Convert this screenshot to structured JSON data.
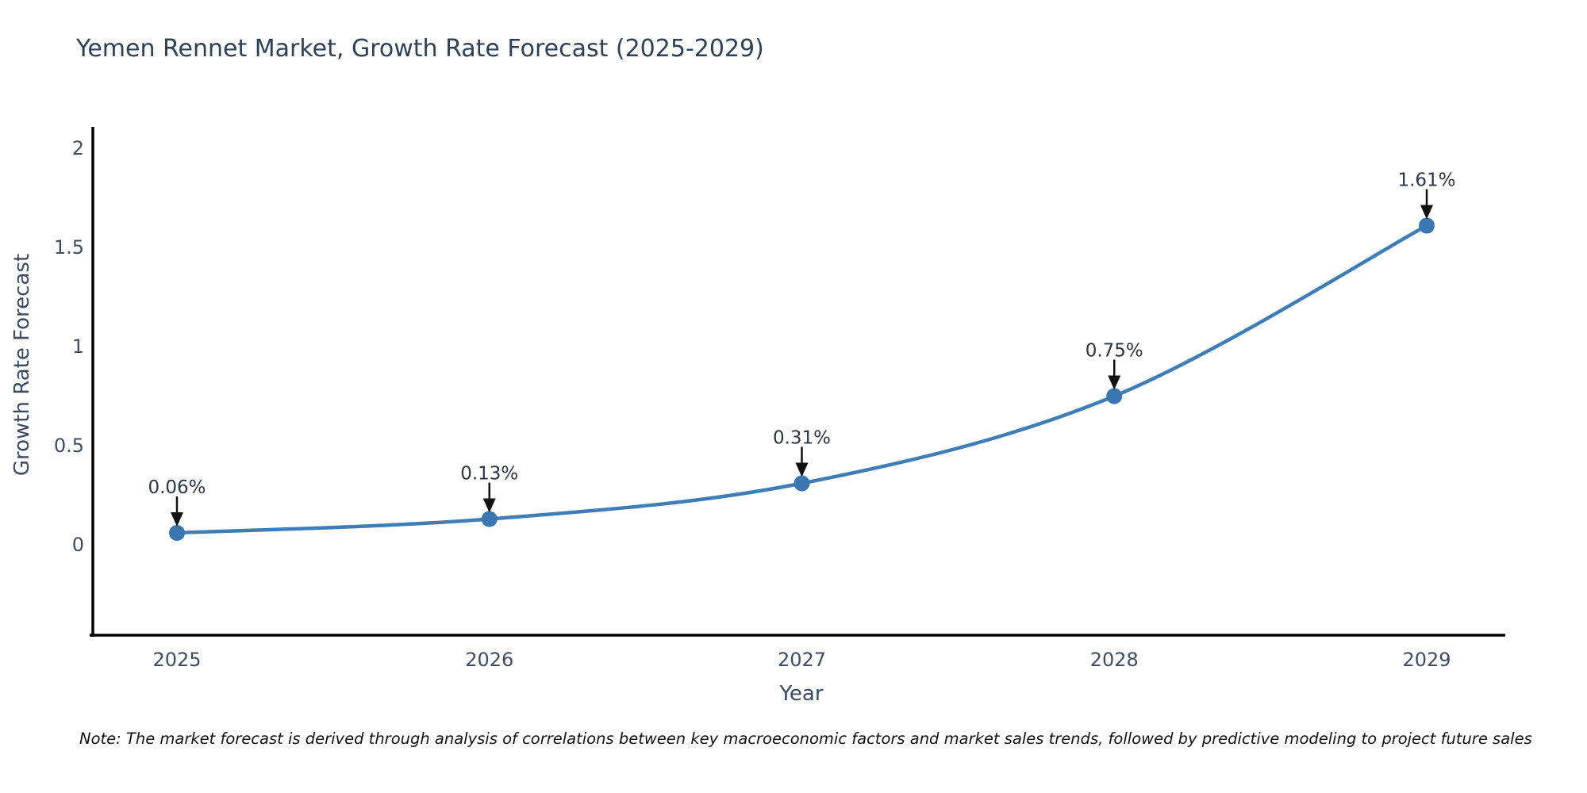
{
  "title": "Yemen Rennet Market, Growth Rate Forecast (2025-2029)",
  "note": "Note: The market forecast is derived through analysis of correlations between key macroeconomic factors and market sales trends, followed by predictive modeling to project future sales",
  "chart_data": {
    "type": "line",
    "title": "Yemen Rennet Market, Growth Rate Forecast (2025-2029)",
    "xlabel": "Year",
    "ylabel": "Growth Rate Forecast",
    "x": [
      2025,
      2026,
      2027,
      2028,
      2029
    ],
    "values": [
      0.06,
      0.13,
      0.31,
      0.75,
      1.61
    ],
    "point_labels": [
      "0.06%",
      "0.13%",
      "0.31%",
      "0.75%",
      "1.61%"
    ],
    "yticks": [
      0,
      0.5,
      1,
      1.5,
      2
    ],
    "ylim": [
      -0.45,
      2.1
    ],
    "grid": false,
    "legend": "none",
    "marker_style": "circle-with-down-arrow-annotation",
    "colors": {
      "line": "#3f7db8",
      "marker": "#3a76b2",
      "arrow": "#111111",
      "axis": "#000000",
      "title_text": "#2e4156",
      "axis_title_text": "#3a4a63",
      "tick_text": "#3e4d62",
      "annotation_text": "#2a3545",
      "note_text": "#111111",
      "background": "#ffffff"
    }
  }
}
